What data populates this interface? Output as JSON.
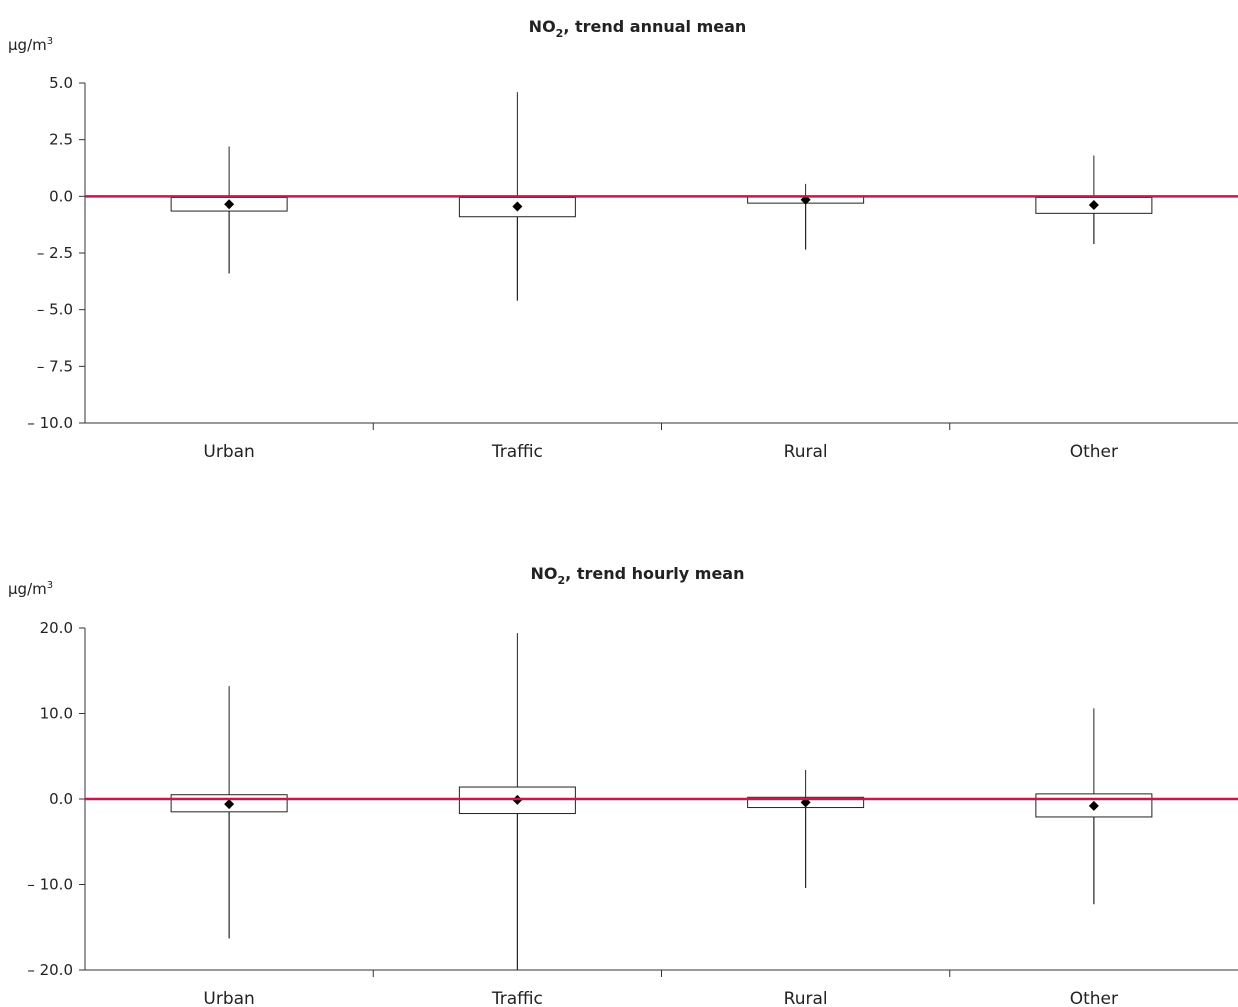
{
  "chart_data": [
    {
      "type": "box",
      "title_main": "NO",
      "title_sub": "2",
      "title_rest": ", trend annual mean",
      "ylabel": "µg/m",
      "ylabel_sup": "3",
      "categories": [
        "Urban",
        "Traffic",
        "Rural",
        "Other"
      ],
      "ylim": [
        -10.0,
        5.0
      ],
      "yticks": [
        5.0,
        2.5,
        0.0,
        -2.5,
        -5.0,
        -7.5,
        -10.0
      ],
      "ytick_labels": [
        "5.0",
        "2.5",
        "0.0",
        "– 2.5",
        "– 5.0",
        "– 7.5",
        "– 10.0"
      ],
      "reference_line": 0.0,
      "reference_color": "#c8174b",
      "boxes": [
        {
          "category": "Urban",
          "whisker_low": -3.4,
          "box_low": -0.65,
          "box_high": -0.05,
          "mean": -0.35,
          "whisker_high": 2.2
        },
        {
          "category": "Traffic",
          "whisker_low": -4.6,
          "box_low": -0.9,
          "box_high": -0.05,
          "mean": -0.45,
          "whisker_high": 4.6
        },
        {
          "category": "Rural",
          "whisker_low": -2.35,
          "box_low": -0.3,
          "box_high": -0.02,
          "mean": -0.15,
          "whisker_high": 0.55
        },
        {
          "category": "Other",
          "whisker_low": -2.1,
          "box_low": -0.75,
          "box_high": -0.05,
          "mean": -0.38,
          "whisker_high": 1.8
        }
      ]
    },
    {
      "type": "box",
      "title_main": "NO",
      "title_sub": "2",
      "title_rest": ", trend hourly mean",
      "ylabel": "µg/m",
      "ylabel_sup": "3",
      "categories": [
        "Urban",
        "Traffic",
        "Rural",
        "Other"
      ],
      "ylim": [
        -20.0,
        20.0
      ],
      "yticks": [
        20.0,
        10.0,
        0.0,
        -10.0,
        -20.0
      ],
      "ytick_labels": [
        "20.0",
        "10.0",
        "0.0",
        "– 10.0",
        "– 20.0"
      ],
      "reference_line": 0.0,
      "reference_color": "#c8174b",
      "boxes": [
        {
          "category": "Urban",
          "whisker_low": -16.3,
          "box_low": -1.5,
          "box_high": 0.5,
          "mean": -0.6,
          "whisker_high": 13.2
        },
        {
          "category": "Traffic",
          "whisker_low": -20.0,
          "box_low": -1.7,
          "box_high": 1.4,
          "mean": -0.1,
          "whisker_high": 19.4
        },
        {
          "category": "Rural",
          "whisker_low": -10.4,
          "box_low": -1.0,
          "box_high": 0.2,
          "mean": -0.4,
          "whisker_high": 3.4
        },
        {
          "category": "Other",
          "whisker_low": -12.3,
          "box_low": -2.1,
          "box_high": 0.6,
          "mean": -0.8,
          "whisker_high": 10.6
        }
      ]
    }
  ]
}
